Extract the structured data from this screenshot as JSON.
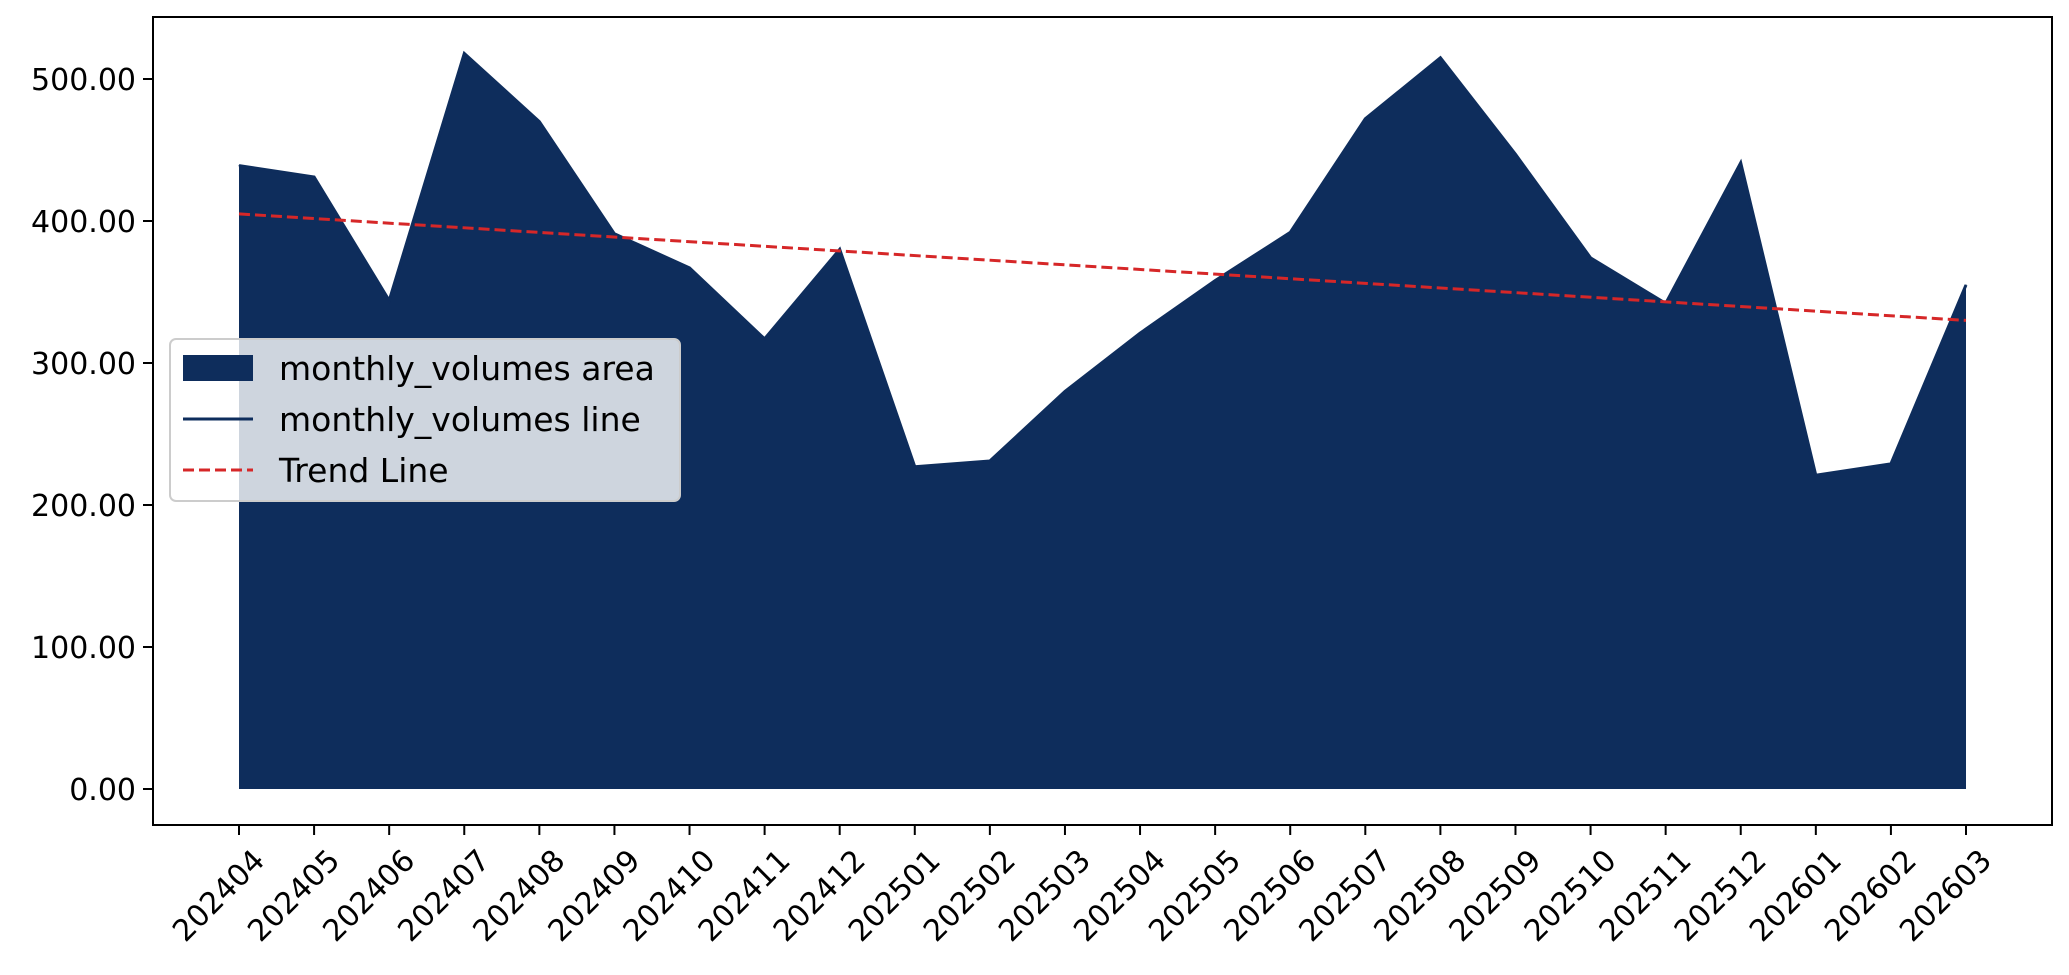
{
  "chart_data": {
    "type": "area",
    "title": "",
    "xlabel": "",
    "ylabel": "",
    "categories": [
      "202404",
      "202405",
      "202406",
      "202407",
      "202408",
      "202409",
      "202410",
      "202411",
      "202412",
      "202501",
      "202502",
      "202503",
      "202504",
      "202505",
      "202506",
      "202507",
      "202508",
      "202509",
      "202510",
      "202511",
      "202512",
      "202601",
      "202602",
      "202603"
    ],
    "series": [
      {
        "name": "monthly_volumes area",
        "kind": "area",
        "color": "#0e2d5c",
        "values": [
          439,
          431,
          344,
          518,
          470,
          391,
          367,
          317,
          380,
          227,
          231,
          280,
          321,
          358,
          392,
          472,
          515,
          447,
          374,
          342,
          441,
          221,
          229,
          355
        ]
      },
      {
        "name": "monthly_volumes line",
        "kind": "line",
        "color": "#0e2d5c",
        "values": [
          439,
          431,
          344,
          518,
          470,
          391,
          367,
          317,
          380,
          227,
          231,
          280,
          321,
          358,
          392,
          472,
          515,
          447,
          374,
          342,
          441,
          221,
          229,
          355
        ]
      },
      {
        "name": "Trend Line",
        "kind": "trend",
        "color": "#d62728",
        "dashed": true,
        "start": 405,
        "end": 330
      }
    ],
    "yticks": [
      0,
      100,
      200,
      300,
      400,
      500
    ],
    "ytick_labels": [
      "0.00",
      "100.00",
      "200.00",
      "300.00",
      "400.00",
      "500.00"
    ],
    "ylim": [
      -26,
      545
    ],
    "grid": false,
    "legend_position": "center-left"
  }
}
